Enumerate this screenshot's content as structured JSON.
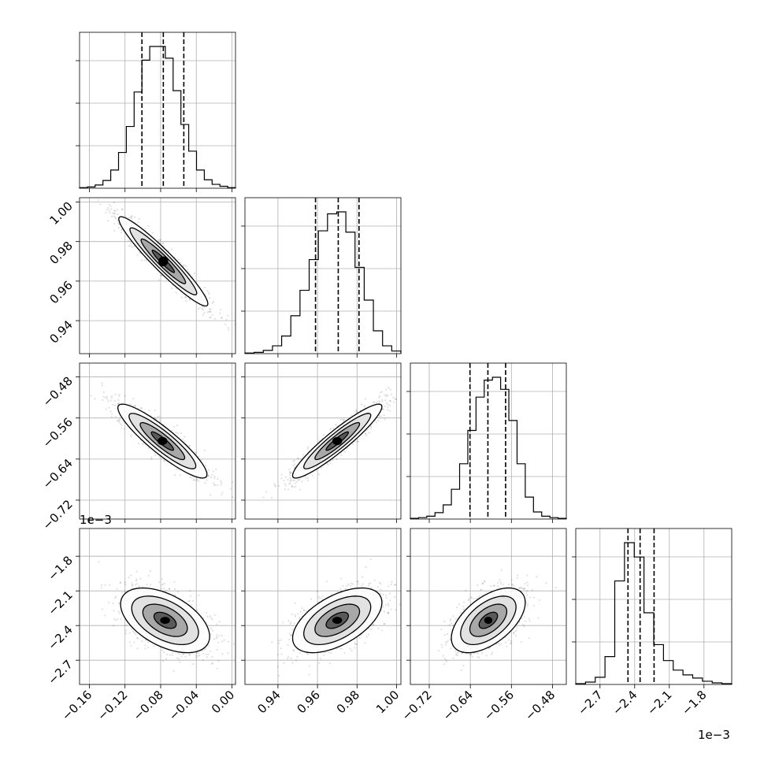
{
  "chart_data": {
    "type": "corner",
    "grid": true,
    "parameters": [
      {
        "xticks": [
          -0.16,
          -0.12,
          -0.08,
          -0.04,
          0.0
        ],
        "ticklabels": [
          "−0.16",
          "−0.12",
          "−0.08",
          "−0.04",
          "0.00"
        ],
        "range": [
          -0.171,
          0.004
        ]
      },
      {
        "xticks": [
          0.94,
          0.96,
          0.98,
          1.0
        ],
        "ticklabels": [
          "0.94",
          "0.96",
          "0.98",
          "1.00"
        ],
        "range": [
          0.9233,
          1.0022
        ]
      },
      {
        "xticks": [
          -0.72,
          -0.64,
          -0.56,
          -0.48
        ],
        "ticklabels": [
          "−0.72",
          "−0.64",
          "−0.56",
          "−0.48"
        ],
        "range": [
          -0.7568,
          -0.4531
        ]
      },
      {
        "xticks": [
          -0.0027,
          -0.0024,
          -0.0021,
          -0.0018
        ],
        "ticklabels": [
          "−2.7",
          "−2.4",
          "−2.1",
          "−1.8"
        ],
        "offset": "1e−3",
        "range": [
          -0.00291,
          -0.00156
        ]
      }
    ],
    "quantiles": [
      [
        -0.101,
        -0.077,
        -0.054
      ],
      [
        0.959,
        0.9705,
        0.981
      ],
      [
        -0.6407,
        -0.6058,
        -0.5713
      ],
      [
        -0.002458,
        -0.002353,
        -0.002232
      ]
    ],
    "histograms": [
      [
        1,
        2,
        5,
        12,
        28,
        55,
        95,
        148,
        197,
        218,
        218,
        200,
        150,
        98,
        57,
        28,
        13,
        6,
        3,
        1
      ],
      [
        1,
        2,
        5,
        12,
        27,
        58,
        97,
        144,
        188,
        214,
        217,
        186,
        132,
        82,
        35,
        12,
        4
      ],
      [
        1,
        2,
        4,
        9,
        20,
        42,
        78,
        125,
        172,
        196,
        200,
        183,
        139,
        78,
        31,
        10,
        4,
        2,
        1
      ],
      [
        1,
        3,
        9,
        35,
        130,
        178,
        160,
        90,
        50,
        30,
        18,
        12,
        8,
        4,
        2,
        1
      ]
    ],
    "pairs": [
      {
        "row": 1,
        "col": 0,
        "center": [
          -0.077,
          0.97
        ],
        "sd": [
          0.025,
          0.0113
        ],
        "rho": -0.95
      },
      {
        "row": 2,
        "col": 0,
        "center": [
          -0.078,
          -0.605
        ],
        "sd": [
          0.025,
          0.036
        ],
        "rho": -0.9
      },
      {
        "row": 2,
        "col": 1,
        "center": [
          0.97,
          -0.605
        ],
        "sd": [
          0.0113,
          0.036
        ],
        "rho": 0.93
      },
      {
        "row": 3,
        "col": 0,
        "center": [
          -0.075,
          -0.002355
        ],
        "sd": [
          0.025,
          0.00014
        ],
        "rho": -0.5
      },
      {
        "row": 3,
        "col": 1,
        "center": [
          0.97,
          -0.002355
        ],
        "sd": [
          0.0113,
          0.00014
        ],
        "rho": 0.55
      },
      {
        "row": 3,
        "col": 2,
        "center": [
          -0.605,
          -0.002355
        ],
        "sd": [
          0.036,
          0.00014
        ],
        "rho": 0.55
      }
    ]
  },
  "offset_labels": {
    "left": "1e−3",
    "bottom": "1e−3"
  }
}
